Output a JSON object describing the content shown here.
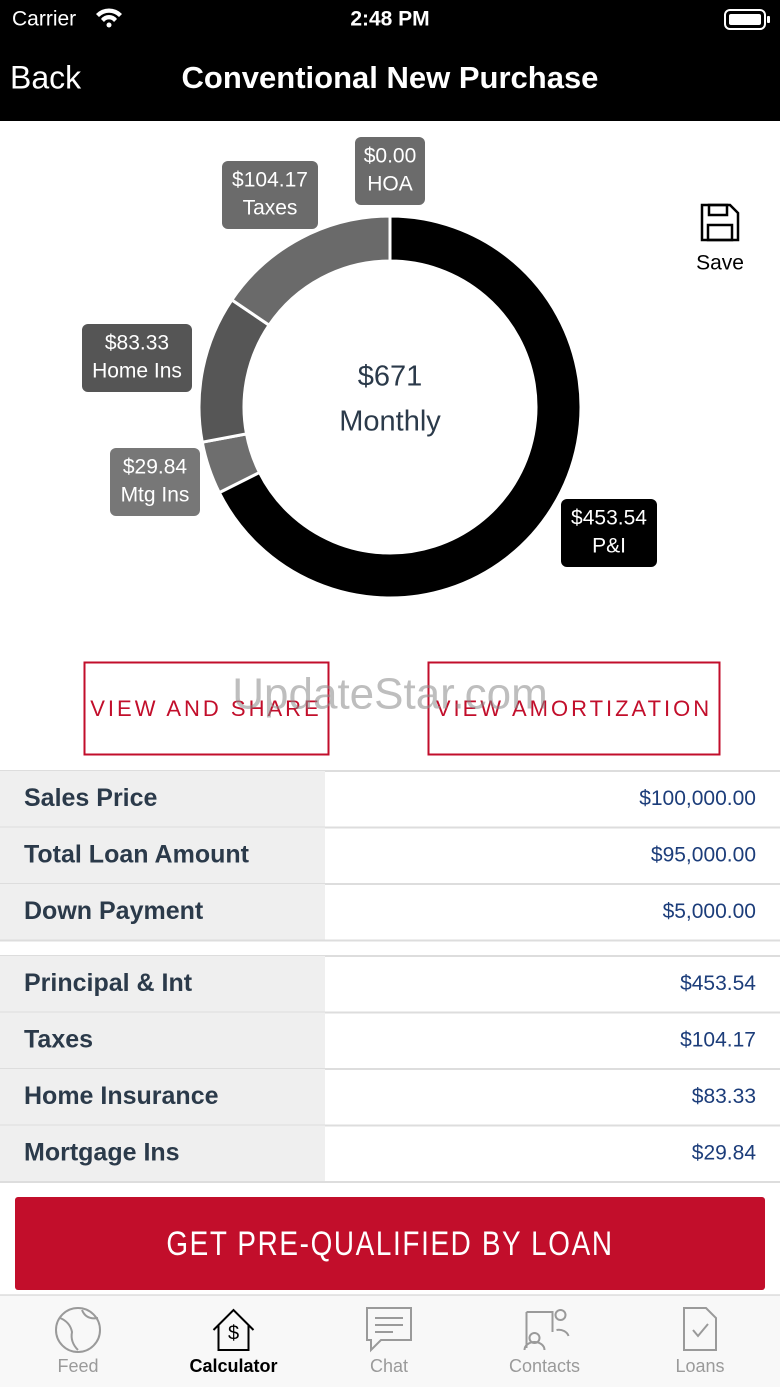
{
  "status_bar": {
    "carrier": "Carrier",
    "time": "2:48 PM"
  },
  "nav": {
    "back": "Back",
    "title": "Conventional New Purchase"
  },
  "chart_data": {
    "type": "pie",
    "categories": [
      "P&I",
      "Mtg Ins",
      "Home Ins",
      "Taxes",
      "HOA"
    ],
    "values": [
      453.54,
      29.84,
      83.33,
      104.17,
      0
    ],
    "value_labels": [
      "$453.54",
      "$29.84",
      "$83.33",
      "$104.17",
      "$0.00"
    ],
    "colors": [
      "#000000",
      "#6e6e6e",
      "#565656",
      "#6a6a6a",
      "#6a6a6a"
    ],
    "label_colors": [
      "#000000",
      "#777777",
      "#555555",
      "#6b6b6b",
      "#6b6b6b"
    ],
    "center_value": "$671",
    "center_label": "Monthly"
  },
  "save": "Save",
  "buttons": [
    "VIEW AND SHARE",
    "VIEW AMORTIZATION"
  ],
  "watermark": "UpdateStar.com",
  "loan_table": {
    "rows": [
      [
        "Sales Price",
        "$100,000.00"
      ],
      [
        "Total Loan Amount",
        "$95,000.00"
      ],
      [
        "Down Payment",
        "$5,000.00"
      ]
    ]
  },
  "payment_table": {
    "rows": [
      [
        "Principal & Int",
        "$453.54"
      ],
      [
        "Taxes",
        "$104.17"
      ],
      [
        "Home Insurance",
        "$83.33"
      ],
      [
        "Mortgage Ins",
        "$29.84"
      ]
    ]
  },
  "cta": "GET PRE-QUALIFIED BY LOAN",
  "tabs": [
    "Feed",
    "Calculator",
    "Chat",
    "Contacts",
    "Loans"
  ]
}
